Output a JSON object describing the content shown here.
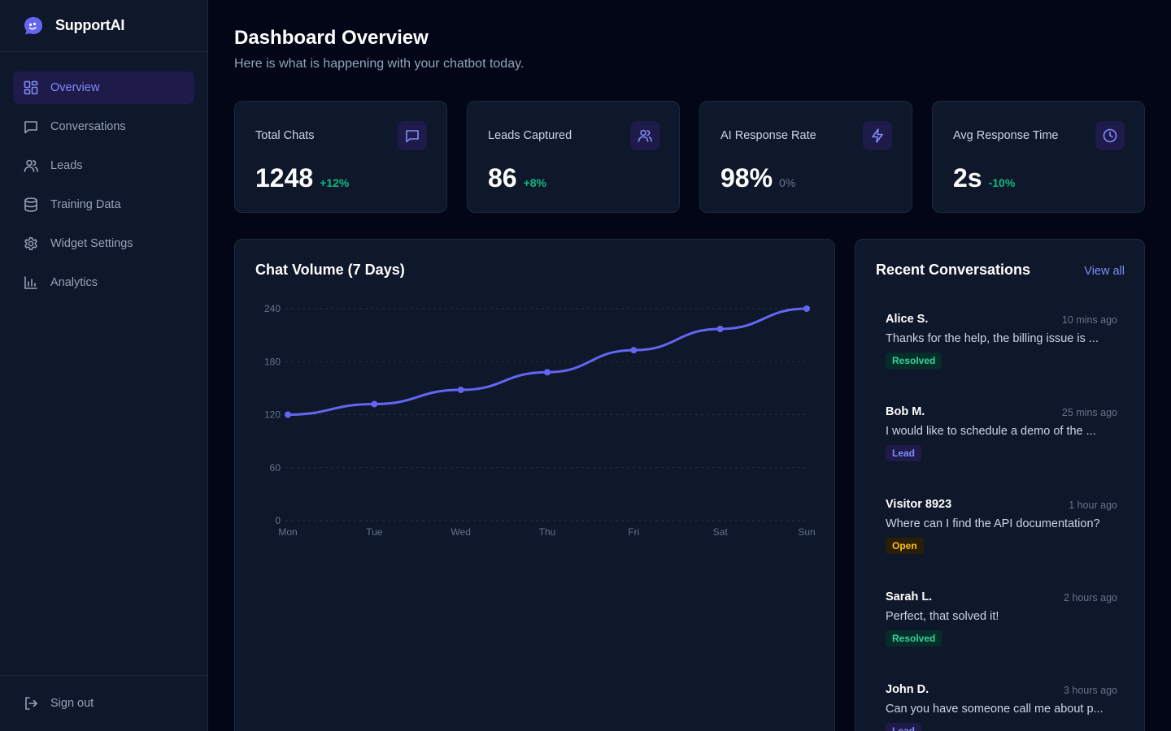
{
  "brand": {
    "name": "SupportAI"
  },
  "sidebar": {
    "items": [
      {
        "label": "Overview",
        "icon": "grid-icon",
        "active": true
      },
      {
        "label": "Conversations",
        "icon": "chat-icon",
        "active": false
      },
      {
        "label": "Leads",
        "icon": "users-icon",
        "active": false
      },
      {
        "label": "Training Data",
        "icon": "database-icon",
        "active": false
      },
      {
        "label": "Widget Settings",
        "icon": "gear-icon",
        "active": false
      },
      {
        "label": "Analytics",
        "icon": "bar-chart-icon",
        "active": false
      }
    ],
    "signout": "Sign out"
  },
  "header": {
    "title": "Dashboard Overview",
    "subtitle": "Here is what is happening with your chatbot today."
  },
  "stats": [
    {
      "label": "Total Chats",
      "value": "1248",
      "change": "+12%",
      "icon": "chat-icon"
    },
    {
      "label": "Leads Captured",
      "value": "86",
      "change": "+8%",
      "icon": "users-icon"
    },
    {
      "label": "AI Response Rate",
      "value": "98%",
      "change": "0%",
      "icon": "lightning-icon"
    },
    {
      "label": "Avg Response Time",
      "value": "2s",
      "change": "-10%",
      "icon": "clock-icon"
    }
  ],
  "chart": {
    "title": "Chat Volume (7 Days)"
  },
  "chart_data": {
    "type": "line",
    "title": "Chat Volume (7 Days)",
    "categories": [
      "Mon",
      "Tue",
      "Wed",
      "Thu",
      "Fri",
      "Sat",
      "Sun"
    ],
    "series": [
      {
        "values": [
          120,
          132,
          148,
          168,
          193,
          217,
          240
        ]
      }
    ],
    "ylim": [
      0,
      240
    ],
    "yticks": [
      0,
      60,
      120,
      180,
      240
    ],
    "grid": true,
    "color": "#6366f1"
  },
  "recent": {
    "title": "Recent Conversations",
    "view_all": "View all",
    "items": [
      {
        "name": "Alice S.",
        "time": "10 mins ago",
        "message": "Thanks for the help, the billing issue is ...",
        "status": "Resolved",
        "status_type": "resolved"
      },
      {
        "name": "Bob M.",
        "time": "25 mins ago",
        "message": "I would like to schedule a demo of the ...",
        "status": "Lead",
        "status_type": "lead"
      },
      {
        "name": "Visitor 8923",
        "time": "1 hour ago",
        "message": "Where can I find the API documentation?",
        "status": "Open",
        "status_type": "open"
      },
      {
        "name": "Sarah L.",
        "time": "2 hours ago",
        "message": "Perfect, that solved it!",
        "status": "Resolved",
        "status_type": "resolved"
      },
      {
        "name": "John D.",
        "time": "3 hours ago",
        "message": "Can you have someone call me about p...",
        "status": "Lead",
        "status_type": "lead"
      }
    ]
  },
  "colors": {
    "accent": "#6366f1",
    "success": "#10b981",
    "warning": "#fbbf24",
    "background": "#020617",
    "card": "#0f172a"
  }
}
